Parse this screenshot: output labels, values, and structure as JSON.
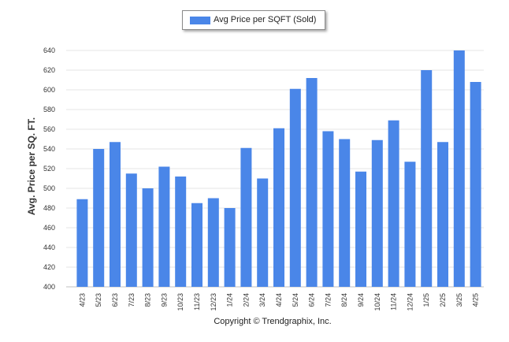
{
  "chart_data": {
    "type": "bar",
    "ylabel": "Avg. Price per SQ. FT.",
    "xlabel": "",
    "ylim": [
      400,
      640
    ],
    "yticks": [
      400,
      420,
      440,
      460,
      480,
      500,
      520,
      540,
      560,
      580,
      600,
      620,
      640
    ],
    "grid": true,
    "legend_position": "top-center",
    "categories": [
      "4/23",
      "5/23",
      "6/23",
      "7/23",
      "8/23",
      "9/23",
      "10/23",
      "11/23",
      "12/23",
      "1/24",
      "2/24",
      "3/24",
      "4/24",
      "5/24",
      "6/24",
      "7/24",
      "8/24",
      "9/24",
      "10/24",
      "11/24",
      "12/24",
      "1/25",
      "2/25",
      "3/25",
      "4/25"
    ],
    "series": [
      {
        "name": "Avg Price per SQFT (Sold)",
        "color": "#4a86e8",
        "values": [
          489,
          540,
          547,
          515,
          500,
          522,
          512,
          485,
          490,
          480,
          541,
          510,
          561,
          601,
          612,
          558,
          550,
          517,
          549,
          569,
          527,
          620,
          547,
          641,
          608
        ]
      }
    ]
  },
  "footer": {
    "copyright": "Copyright © Trendgraphix, Inc."
  }
}
